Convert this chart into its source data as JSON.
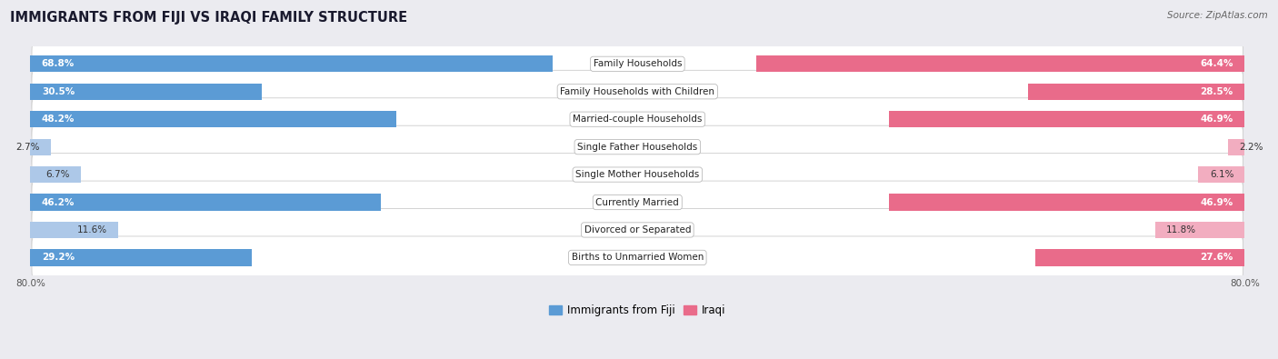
{
  "title": "IMMIGRANTS FROM FIJI VS IRAQI FAMILY STRUCTURE",
  "source": "Source: ZipAtlas.com",
  "categories": [
    "Family Households",
    "Family Households with Children",
    "Married-couple Households",
    "Single Father Households",
    "Single Mother Households",
    "Currently Married",
    "Divorced or Separated",
    "Births to Unmarried Women"
  ],
  "fiji_values": [
    68.8,
    30.5,
    48.2,
    2.7,
    6.7,
    46.2,
    11.6,
    29.2
  ],
  "iraqi_values": [
    64.4,
    28.5,
    46.9,
    2.2,
    6.1,
    46.9,
    11.8,
    27.6
  ],
  "fiji_color_strong": "#5b9bd5",
  "fiji_color_light": "#adc8e8",
  "iraqi_color_strong": "#e96b8a",
  "iraqi_color_light": "#f2adc0",
  "axis_limit": 80.0,
  "background_color": "#ebebf0",
  "row_bg_color": "#f5f5f8",
  "bar_height": 0.6,
  "label_fontsize": 7.5,
  "title_fontsize": 10.5,
  "source_fontsize": 7.5,
  "value_fontsize": 7.5,
  "legend_fontsize": 8.5,
  "strong_threshold": 15
}
